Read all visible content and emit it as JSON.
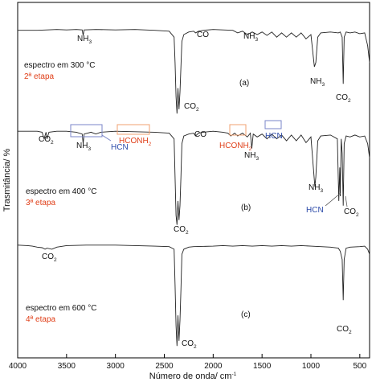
{
  "chart_data": {
    "type": "line",
    "xlabel": "Número de onda/ cm",
    "xlabel_sup": "-1",
    "ylabel": "Trasmitância/ %",
    "xlim": [
      4000,
      400
    ],
    "x_ticks": [
      "4000",
      "3500",
      "3000",
      "2500",
      "2000",
      "1500",
      "1000",
      "500"
    ],
    "series": [
      {
        "id": "a",
        "letter": "(a)",
        "condition": "espectro em 300 °C",
        "stage": "2ª etapa",
        "points": [
          [
            4000,
            0.98
          ],
          [
            3800,
            0.98
          ],
          [
            3700,
            0.985
          ],
          [
            3600,
            0.99
          ],
          [
            3500,
            0.985
          ],
          [
            3400,
            0.99
          ],
          [
            3340,
            0.985
          ],
          [
            3330,
            0.92
          ],
          [
            3320,
            0.985
          ],
          [
            3200,
            0.99
          ],
          [
            3000,
            0.985
          ],
          [
            2800,
            0.99
          ],
          [
            2600,
            0.98
          ],
          [
            2450,
            0.97
          ],
          [
            2400,
            0.9
          ],
          [
            2390,
            0.6
          ],
          [
            2380,
            0.2
          ],
          [
            2370,
            0.0
          ],
          [
            2360,
            0.3
          ],
          [
            2350,
            0.05
          ],
          [
            2340,
            0.25
          ],
          [
            2330,
            0.55
          ],
          [
            2320,
            0.85
          ],
          [
            2300,
            0.93
          ],
          [
            2250,
            0.96
          ],
          [
            2200,
            0.97
          ],
          [
            2180,
            0.95
          ],
          [
            2150,
            0.97
          ],
          [
            2100,
            0.98
          ],
          [
            2000,
            0.99
          ],
          [
            1900,
            0.985
          ],
          [
            1800,
            0.98
          ],
          [
            1750,
            0.95
          ],
          [
            1700,
            0.97
          ],
          [
            1650,
            0.93
          ],
          [
            1600,
            0.96
          ],
          [
            1550,
            0.93
          ],
          [
            1500,
            0.96
          ],
          [
            1450,
            0.92
          ],
          [
            1400,
            0.96
          ],
          [
            1350,
            0.9
          ],
          [
            1300,
            0.95
          ],
          [
            1250,
            0.9
          ],
          [
            1200,
            0.95
          ],
          [
            1150,
            0.9
          ],
          [
            1100,
            0.95
          ],
          [
            1050,
            0.88
          ],
          [
            1000,
            0.93
          ],
          [
            965,
            0.55
          ],
          [
            950,
            0.6
          ],
          [
            930,
            0.9
          ],
          [
            900,
            0.95
          ],
          [
            800,
            0.96
          ],
          [
            720,
            0.95
          ],
          [
            700,
            0.96
          ],
          [
            680,
            0.9
          ],
          [
            670,
            0.35
          ],
          [
            660,
            0.9
          ],
          [
            640,
            0.96
          ],
          [
            600,
            0.95
          ],
          [
            550,
            0.96
          ],
          [
            500,
            0.94
          ],
          [
            450,
            0.95
          ],
          [
            420,
            0.8
          ],
          [
            400,
            0.6
          ]
        ]
      },
      {
        "id": "b",
        "letter": "(b)",
        "condition": "espectro em 400 °C",
        "stage": "3ª etapa",
        "points": [
          [
            4000,
            0.98
          ],
          [
            3800,
            0.98
          ],
          [
            3750,
            0.97
          ],
          [
            3730,
            0.9
          ],
          [
            3710,
            0.97
          ],
          [
            3700,
            0.9
          ],
          [
            3680,
            0.97
          ],
          [
            3600,
            0.98
          ],
          [
            3500,
            0.98
          ],
          [
            3400,
            0.97
          ],
          [
            3340,
            0.95
          ],
          [
            3330,
            0.85
          ],
          [
            3320,
            0.95
          ],
          [
            3250,
            0.97
          ],
          [
            3200,
            0.95
          ],
          [
            3150,
            0.97
          ],
          [
            3000,
            0.98
          ],
          [
            2800,
            0.975
          ],
          [
            2600,
            0.97
          ],
          [
            2450,
            0.96
          ],
          [
            2400,
            0.9
          ],
          [
            2390,
            0.5
          ],
          [
            2380,
            0.1
          ],
          [
            2370,
            0.0
          ],
          [
            2360,
            0.25
          ],
          [
            2350,
            0.05
          ],
          [
            2340,
            0.2
          ],
          [
            2330,
            0.5
          ],
          [
            2320,
            0.85
          ],
          [
            2300,
            0.93
          ],
          [
            2250,
            0.95
          ],
          [
            2200,
            0.96
          ],
          [
            2180,
            0.93
          ],
          [
            2150,
            0.96
          ],
          [
            2100,
            0.97
          ],
          [
            2000,
            0.98
          ],
          [
            1900,
            0.97
          ],
          [
            1850,
            0.96
          ],
          [
            1820,
            0.93
          ],
          [
            1780,
            0.96
          ],
          [
            1750,
            0.93
          ],
          [
            1700,
            0.96
          ],
          [
            1650,
            0.92
          ],
          [
            1620,
            0.96
          ],
          [
            1605,
            0.8
          ],
          [
            1590,
            0.95
          ],
          [
            1550,
            0.92
          ],
          [
            1500,
            0.95
          ],
          [
            1450,
            0.9
          ],
          [
            1400,
            0.95
          ],
          [
            1350,
            0.9
          ],
          [
            1300,
            0.94
          ],
          [
            1250,
            0.88
          ],
          [
            1200,
            0.94
          ],
          [
            1150,
            0.88
          ],
          [
            1100,
            0.94
          ],
          [
            1050,
            0.86
          ],
          [
            1000,
            0.92
          ],
          [
            960,
            0.4
          ],
          [
            950,
            0.5
          ],
          [
            930,
            0.88
          ],
          [
            900,
            0.93
          ],
          [
            800,
            0.94
          ],
          [
            730,
            0.9
          ],
          [
            715,
            0.25
          ],
          [
            705,
            0.6
          ],
          [
            700,
            0.3
          ],
          [
            690,
            0.9
          ],
          [
            680,
            0.75
          ],
          [
            670,
            0.2
          ],
          [
            660,
            0.85
          ],
          [
            640,
            0.93
          ],
          [
            600,
            0.92
          ],
          [
            550,
            0.94
          ],
          [
            500,
            0.92
          ],
          [
            450,
            0.93
          ],
          [
            420,
            0.85
          ],
          [
            400,
            0.7
          ]
        ]
      },
      {
        "id": "c",
        "letter": "(c)",
        "condition": "espectro em 600 °C",
        "stage": "4ª etapa",
        "points": [
          [
            4000,
            0.99
          ],
          [
            3900,
            0.985
          ],
          [
            3850,
            0.98
          ],
          [
            3800,
            0.97
          ],
          [
            3750,
            0.965
          ],
          [
            3720,
            0.95
          ],
          [
            3700,
            0.96
          ],
          [
            3650,
            0.95
          ],
          [
            3600,
            0.97
          ],
          [
            3500,
            0.985
          ],
          [
            3300,
            0.99
          ],
          [
            3000,
            0.99
          ],
          [
            2800,
            0.985
          ],
          [
            2600,
            0.98
          ],
          [
            2450,
            0.975
          ],
          [
            2400,
            0.95
          ],
          [
            2390,
            0.6
          ],
          [
            2380,
            0.2
          ],
          [
            2370,
            0.0
          ],
          [
            2360,
            0.3
          ],
          [
            2350,
            0.05
          ],
          [
            2340,
            0.25
          ],
          [
            2330,
            0.55
          ],
          [
            2320,
            0.9
          ],
          [
            2300,
            0.95
          ],
          [
            2250,
            0.97
          ],
          [
            2200,
            0.975
          ],
          [
            2000,
            0.98
          ],
          [
            1900,
            0.985
          ],
          [
            1800,
            0.98
          ],
          [
            1700,
            0.985
          ],
          [
            1600,
            0.98
          ],
          [
            1500,
            0.985
          ],
          [
            1400,
            0.98
          ],
          [
            1300,
            0.985
          ],
          [
            1200,
            0.98
          ],
          [
            1100,
            0.985
          ],
          [
            1000,
            0.98
          ],
          [
            900,
            0.975
          ],
          [
            800,
            0.97
          ],
          [
            720,
            0.96
          ],
          [
            700,
            0.93
          ],
          [
            680,
            0.85
          ],
          [
            670,
            0.45
          ],
          [
            660,
            0.85
          ],
          [
            640,
            0.96
          ],
          [
            600,
            0.97
          ],
          [
            500,
            0.975
          ],
          [
            450,
            0.98
          ],
          [
            420,
            0.95
          ],
          [
            400,
            0.9
          ]
        ]
      }
    ],
    "annotations": {
      "a": [
        {
          "text": "NH",
          "sub": "3",
          "color": "black"
        },
        {
          "text": "CO",
          "sub": "",
          "color": "black"
        },
        {
          "text": "NH",
          "sub": "3",
          "color": "black"
        },
        {
          "text": "CO",
          "sub": "2",
          "color": "black"
        },
        {
          "text": "NH",
          "sub": "3",
          "color": "black"
        },
        {
          "text": "CO",
          "sub": "2",
          "color": "black"
        }
      ],
      "b": [
        {
          "text": "CO",
          "sub": "2",
          "color": "black"
        },
        {
          "text": "NH",
          "sub": "3",
          "color": "black"
        },
        {
          "text": "HCN",
          "sub": "",
          "color": "blue"
        },
        {
          "text": "HCONH",
          "sub": "2",
          "color": "orange"
        },
        {
          "text": "CO",
          "sub": "",
          "color": "black"
        },
        {
          "text": "HCONH",
          "sub": "2",
          "color": "orange"
        },
        {
          "text": "NH",
          "sub": "3",
          "color": "black"
        },
        {
          "text": "HCN",
          "sub": "",
          "color": "blue"
        },
        {
          "text": "CO",
          "sub": "2",
          "color": "black"
        },
        {
          "text": "NH",
          "sub": "3",
          "color": "black"
        },
        {
          "text": "HCN",
          "sub": "",
          "color": "blue"
        },
        {
          "text": "CO",
          "sub": "2",
          "color": "black"
        }
      ],
      "c": [
        {
          "text": "CO",
          "sub": "2",
          "color": "black"
        },
        {
          "text": "CO",
          "sub": "2",
          "color": "black"
        },
        {
          "text": "CO",
          "sub": "2",
          "color": "black"
        }
      ]
    },
    "colors": {
      "line": "#222222",
      "orange": "#e0401a",
      "blue": "#2b4aa8"
    }
  }
}
